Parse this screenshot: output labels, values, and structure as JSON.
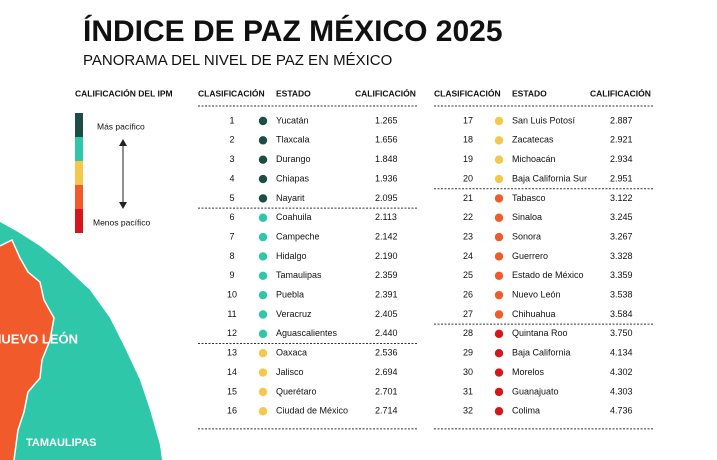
{
  "header": {
    "title": "ÍNDICE DE PAZ MÉXICO 2025",
    "subtitle": "PANORAMA DEL NIVEL DE PAZ EN MÉXICO"
  },
  "legend": {
    "title": "CALIFICACIÓN DEL IPM",
    "top_label": "Más pacífico",
    "bottom_label": "Menos pacífico",
    "colors": [
      "#1e4d46",
      "#2fc7a9",
      "#f3c84b",
      "#f15a2b",
      "#d6161b"
    ]
  },
  "map": {
    "labels": [
      "NUEVO LEÓN",
      "TAMAULIPAS"
    ]
  },
  "table": {
    "columns": [
      "CLASIFICACIÓN",
      "ESTADO",
      "CALIFICACIÓN"
    ],
    "rows": [
      {
        "rank": 1,
        "state": "Yucatán",
        "score": "1.265",
        "color": "#1e4d46"
      },
      {
        "rank": 2,
        "state": "Tlaxcala",
        "score": "1.656",
        "color": "#1e4d46"
      },
      {
        "rank": 3,
        "state": "Durango",
        "score": "1.848",
        "color": "#1e4d46"
      },
      {
        "rank": 4,
        "state": "Chiapas",
        "score": "1.936",
        "color": "#1e4d46"
      },
      {
        "rank": 5,
        "state": "Nayarit",
        "score": "2.095",
        "color": "#1e4d46"
      },
      {
        "rank": 6,
        "state": "Coahuila",
        "score": "2.113",
        "color": "#2fc7a9"
      },
      {
        "rank": 7,
        "state": "Campeche",
        "score": "2.142",
        "color": "#2fc7a9"
      },
      {
        "rank": 8,
        "state": "Hidalgo",
        "score": "2.190",
        "color": "#2fc7a9"
      },
      {
        "rank": 9,
        "state": "Tamaulipas",
        "score": "2.359",
        "color": "#2fc7a9"
      },
      {
        "rank": 10,
        "state": "Puebla",
        "score": "2.391",
        "color": "#2fc7a9"
      },
      {
        "rank": 11,
        "state": "Veracruz",
        "score": "2.405",
        "color": "#2fc7a9"
      },
      {
        "rank": 12,
        "state": "Aguascalientes",
        "score": "2.440",
        "color": "#2fc7a9"
      },
      {
        "rank": 13,
        "state": "Oaxaca",
        "score": "2.536",
        "color": "#f3c84b"
      },
      {
        "rank": 14,
        "state": "Jalisco",
        "score": "2.694",
        "color": "#f3c84b"
      },
      {
        "rank": 15,
        "state": "Querétaro",
        "score": "2.701",
        "color": "#f3c84b"
      },
      {
        "rank": 16,
        "state": "Ciudad de México",
        "score": "2.714",
        "color": "#f3c84b"
      },
      {
        "rank": 17,
        "state": "San Luis Potosí",
        "score": "2.887",
        "color": "#f3c84b"
      },
      {
        "rank": 18,
        "state": "Zacatecas",
        "score": "2.921",
        "color": "#f3c84b"
      },
      {
        "rank": 19,
        "state": "Michoacán",
        "score": "2.934",
        "color": "#f3c84b"
      },
      {
        "rank": 20,
        "state": "Baja California Sur",
        "score": "2.951",
        "color": "#f3c84b"
      },
      {
        "rank": 21,
        "state": "Tabasco",
        "score": "3.122",
        "color": "#f15a2b"
      },
      {
        "rank": 22,
        "state": "Sinaloa",
        "score": "3.245",
        "color": "#f15a2b"
      },
      {
        "rank": 23,
        "state": "Sonora",
        "score": "3.267",
        "color": "#f15a2b"
      },
      {
        "rank": 24,
        "state": "Guerrero",
        "score": "3.328",
        "color": "#f15a2b"
      },
      {
        "rank": 25,
        "state": "Estado de México",
        "score": "3.359",
        "color": "#f15a2b"
      },
      {
        "rank": 26,
        "state": "Nuevo León",
        "score": "3.538",
        "color": "#f15a2b"
      },
      {
        "rank": 27,
        "state": "Chihuahua",
        "score": "3.584",
        "color": "#f15a2b"
      },
      {
        "rank": 28,
        "state": "Quintana Roo",
        "score": "3.750",
        "color": "#d6161b"
      },
      {
        "rank": 29,
        "state": "Baja California",
        "score": "4.134",
        "color": "#d6161b"
      },
      {
        "rank": 30,
        "state": "Morelos",
        "score": "4.302",
        "color": "#d6161b"
      },
      {
        "rank": 31,
        "state": "Guanajuato",
        "score": "4.303",
        "color": "#d6161b"
      },
      {
        "rank": 32,
        "state": "Colima",
        "score": "4.736",
        "color": "#d6161b"
      }
    ]
  }
}
